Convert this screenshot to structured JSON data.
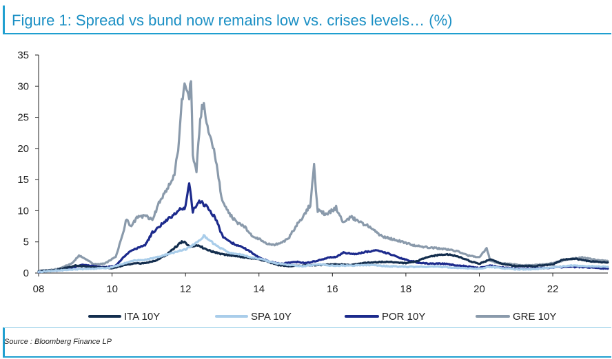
{
  "title": "Figure 1: Spread vs bund now remains low vs. crises levels… (%)",
  "source": "Source : Bloomberg Finance LP",
  "chart_data": {
    "type": "line",
    "title": "Figure 1: Spread vs bund now remains low vs. crises levels… (%)",
    "xlabel": "",
    "ylabel": "",
    "xlim": [
      8,
      23.5
    ],
    "ylim": [
      0,
      35
    ],
    "x_ticks": [
      8,
      10,
      12,
      14,
      16,
      18,
      20,
      22
    ],
    "x_tick_labels": [
      "08",
      "10",
      "12",
      "14",
      "16",
      "18",
      "20",
      "22"
    ],
    "y_ticks": [
      0,
      5,
      10,
      15,
      20,
      25,
      30,
      35
    ],
    "y_tick_labels": [
      "0",
      "5",
      "10",
      "15",
      "20",
      "25",
      "30",
      "35"
    ],
    "series": [
      {
        "name": "GRE 10Y",
        "color": "#8a9aab",
        "x": [
          8.0,
          8.5,
          8.9,
          9.1,
          9.3,
          9.5,
          9.8,
          10.1,
          10.3,
          10.4,
          10.5,
          10.7,
          10.9,
          11.1,
          11.3,
          11.5,
          11.7,
          11.8,
          11.9,
          12.0,
          12.1,
          12.15,
          12.2,
          12.3,
          12.4,
          12.5,
          12.6,
          12.8,
          13.0,
          13.2,
          13.4,
          13.6,
          13.8,
          14.0,
          14.2,
          14.4,
          14.6,
          14.8,
          15.0,
          15.2,
          15.4,
          15.5,
          15.6,
          15.8,
          16.0,
          16.1,
          16.3,
          16.5,
          16.8,
          17.0,
          17.3,
          17.6,
          17.9,
          18.2,
          18.5,
          18.8,
          19.1,
          19.4,
          19.7,
          20.0,
          20.2,
          20.3,
          20.5,
          20.8,
          21.2,
          21.6,
          22.0,
          22.4,
          22.8,
          23.1,
          23.5
        ],
        "values": [
          0.3,
          0.6,
          1.5,
          2.8,
          2.2,
          1.4,
          1.5,
          2.6,
          6.5,
          8.8,
          7.5,
          9.0,
          9.2,
          8.5,
          11.5,
          13.5,
          16.0,
          20.0,
          28.0,
          30.5,
          28.0,
          31.5,
          19.0,
          16.5,
          25.0,
          27.5,
          23.0,
          19.0,
          11.5,
          9.5,
          8.0,
          7.5,
          6.0,
          5.5,
          4.8,
          4.5,
          4.8,
          5.5,
          7.5,
          9.0,
          11.0,
          17.0,
          10.0,
          9.5,
          10.0,
          10.5,
          8.0,
          9.0,
          8.0,
          7.5,
          6.0,
          5.5,
          5.0,
          4.5,
          4.2,
          4.0,
          3.8,
          3.5,
          2.8,
          2.5,
          4.0,
          2.0,
          1.6,
          1.5,
          1.2,
          1.3,
          1.6,
          2.2,
          2.5,
          2.2,
          1.9
        ]
      },
      {
        "name": "POR 10Y",
        "color": "#1c2a8c",
        "x": [
          8.0,
          8.5,
          8.9,
          9.2,
          9.5,
          9.8,
          10.1,
          10.3,
          10.5,
          10.7,
          10.9,
          11.1,
          11.3,
          11.5,
          11.7,
          11.9,
          12.0,
          12.1,
          12.2,
          12.4,
          12.6,
          12.8,
          13.0,
          13.2,
          13.4,
          13.6,
          13.8,
          14.0,
          14.3,
          14.6,
          15.0,
          15.3,
          15.6,
          15.9,
          16.1,
          16.3,
          16.6,
          16.9,
          17.2,
          17.5,
          17.8,
          18.1,
          18.4,
          18.7,
          19.0,
          19.3,
          19.6,
          20.0,
          20.3,
          20.6,
          21.0,
          21.5,
          22.0,
          22.5,
          23.0,
          23.5
        ],
        "values": [
          0.2,
          0.4,
          0.8,
          1.3,
          1.1,
          0.9,
          1.2,
          2.5,
          3.5,
          4.0,
          4.5,
          6.5,
          7.5,
          8.5,
          9.5,
          10.5,
          10.5,
          14.5,
          10.0,
          11.5,
          10.5,
          9.0,
          6.0,
          5.0,
          4.5,
          4.0,
          3.3,
          2.5,
          1.8,
          1.5,
          1.8,
          1.6,
          2.0,
          2.5,
          2.6,
          3.3,
          3.0,
          3.4,
          3.6,
          3.2,
          2.5,
          2.0,
          1.6,
          1.5,
          1.5,
          1.3,
          1.1,
          0.8,
          1.2,
          0.9,
          0.7,
          0.7,
          0.9,
          1.0,
          0.9,
          0.7
        ]
      },
      {
        "name": "ITA 10Y",
        "color": "#142e4e",
        "x": [
          8.0,
          8.5,
          9.0,
          9.5,
          10.0,
          10.3,
          10.6,
          10.9,
          11.2,
          11.5,
          11.7,
          11.9,
          12.0,
          12.1,
          12.3,
          12.5,
          12.7,
          13.0,
          13.3,
          13.6,
          13.9,
          14.2,
          14.5,
          14.8,
          15.2,
          15.6,
          16.0,
          16.5,
          17.0,
          17.5,
          18.0,
          18.3,
          18.6,
          18.9,
          19.2,
          19.5,
          19.8,
          20.0,
          20.3,
          20.6,
          21.0,
          21.5,
          22.0,
          22.3,
          22.6,
          23.0,
          23.5
        ],
        "values": [
          0.3,
          0.5,
          1.2,
          0.9,
          0.8,
          1.2,
          1.5,
          1.6,
          2.0,
          3.0,
          4.0,
          5.0,
          5.0,
          4.2,
          4.5,
          4.0,
          3.5,
          3.0,
          2.8,
          2.5,
          2.3,
          1.9,
          1.3,
          1.1,
          1.2,
          1.3,
          1.4,
          1.3,
          1.7,
          1.8,
          1.6,
          1.9,
          2.6,
          2.9,
          3.0,
          2.5,
          1.8,
          1.5,
          2.2,
          1.5,
          1.1,
          1.1,
          1.4,
          2.2,
          2.3,
          1.9,
          1.7
        ]
      },
      {
        "name": "SPA 10Y",
        "color": "#a9cdea",
        "x": [
          8.0,
          8.5,
          9.0,
          9.5,
          10.0,
          10.3,
          10.6,
          10.9,
          11.2,
          11.5,
          11.8,
          12.0,
          12.2,
          12.4,
          12.5,
          12.7,
          12.9,
          13.2,
          13.5,
          13.8,
          14.1,
          14.4,
          14.8,
          15.2,
          15.6,
          16.0,
          16.5,
          17.0,
          17.5,
          18.0,
          18.5,
          19.0,
          19.5,
          20.0,
          20.3,
          20.6,
          21.0,
          21.5,
          22.0,
          22.5,
          23.0,
          23.5
        ],
        "values": [
          0.2,
          0.4,
          0.6,
          0.7,
          0.9,
          1.5,
          2.0,
          2.1,
          2.5,
          3.0,
          3.5,
          3.8,
          4.5,
          5.2,
          6.0,
          5.0,
          4.2,
          3.2,
          3.0,
          2.5,
          2.2,
          1.6,
          1.3,
          1.1,
          1.4,
          1.2,
          1.2,
          1.3,
          1.1,
          1.0,
          1.0,
          1.0,
          0.8,
          0.7,
          1.0,
          0.8,
          0.6,
          0.6,
          0.9,
          1.2,
          1.1,
          1.0
        ]
      }
    ]
  },
  "legend": [
    {
      "label": "ITA 10Y",
      "color": "#142e4e"
    },
    {
      "label": "SPA 10Y",
      "color": "#a9cdea"
    },
    {
      "label": "POR 10Y",
      "color": "#1c2a8c"
    },
    {
      "label": "GRE 10Y",
      "color": "#8a9aab"
    }
  ]
}
